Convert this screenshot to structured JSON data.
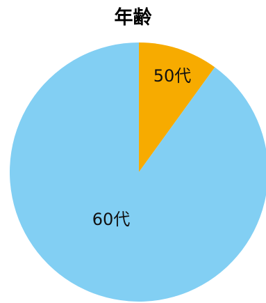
{
  "chart_data": {
    "type": "pie",
    "title": "年齢",
    "categories": [
      "50代",
      "60代"
    ],
    "values": [
      10,
      90
    ],
    "colors": [
      "#F7AB00",
      "#82CFF3"
    ],
    "legend": "none"
  }
}
